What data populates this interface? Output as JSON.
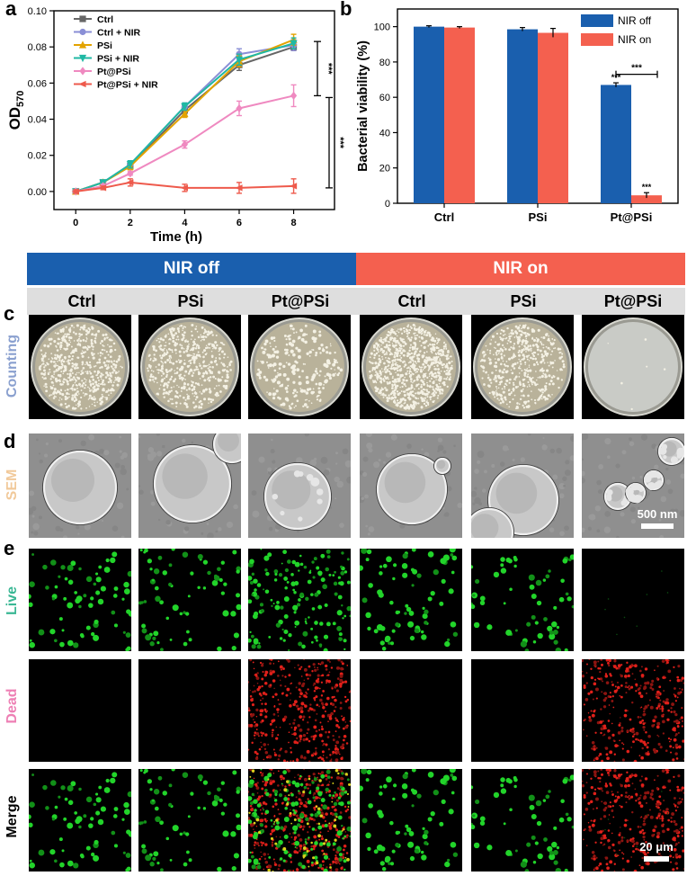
{
  "panel_labels": {
    "a": "a",
    "b": "b",
    "c": "c",
    "d": "d",
    "e": "e"
  },
  "colors": {
    "nir_off": "#1a5fae",
    "nir_on": "#f4604f",
    "counting_label": "#8aa0cf",
    "sem_label": "#f1c99a",
    "live_label": "#3ab794",
    "dead_label": "#ee7fb4"
  },
  "chart_data": [
    {
      "type": "line",
      "ylabel": "OD",
      "ylabel_sub": "570",
      "xlabel": "Time (h)",
      "x": [
        0,
        1,
        2,
        4,
        6,
        8
      ],
      "xticks": [
        "0",
        "2",
        "4",
        "6",
        "8"
      ],
      "yticks": [
        "0.00",
        "0.02",
        "0.04",
        "0.06",
        "0.08",
        "0.10"
      ],
      "xlim": [
        -0.8,
        9.5
      ],
      "ylim": [
        -0.01,
        0.1
      ],
      "series": [
        {
          "name": "Ctrl",
          "color": "#666666",
          "marker": "square",
          "values": [
            0.0,
            0.005,
            0.014,
            0.045,
            0.07,
            0.08
          ],
          "err": [
            0.001,
            0.001,
            0.002,
            0.002,
            0.003,
            0.002
          ]
        },
        {
          "name": "Ctrl + NIR",
          "color": "#8a8fd6",
          "marker": "circle",
          "values": [
            0.0,
            0.005,
            0.015,
            0.047,
            0.076,
            0.081
          ],
          "err": [
            0.001,
            0.001,
            0.002,
            0.002,
            0.003,
            0.003
          ]
        },
        {
          "name": "PSi",
          "color": "#e3a300",
          "marker": "triangle",
          "values": [
            0.0,
            0.005,
            0.014,
            0.043,
            0.072,
            0.084
          ],
          "err": [
            0.001,
            0.001,
            0.002,
            0.002,
            0.003,
            0.003
          ]
        },
        {
          "name": "PSi + NIR",
          "color": "#1fb8a4",
          "marker": "triangle-down",
          "values": [
            0.0,
            0.005,
            0.015,
            0.047,
            0.073,
            0.082
          ],
          "err": [
            0.001,
            0.001,
            0.002,
            0.002,
            0.003,
            0.003
          ]
        },
        {
          "name": "Pt@PSi",
          "color": "#ef89c0",
          "marker": "diamond",
          "values": [
            0.0,
            0.003,
            0.01,
            0.026,
            0.046,
            0.053
          ],
          "err": [
            0.001,
            0.001,
            0.001,
            0.002,
            0.004,
            0.006
          ]
        },
        {
          "name": "Pt@PSi + NIR",
          "color": "#ee5a4c",
          "marker": "triangle-left",
          "values": [
            0.0,
            0.002,
            0.005,
            0.002,
            0.002,
            0.003
          ],
          "err": [
            0.001,
            0.001,
            0.002,
            0.002,
            0.003,
            0.004
          ]
        }
      ],
      "significance": [
        {
          "label": "***",
          "from": 0.053,
          "to": 0.083
        },
        {
          "label": "***",
          "from": 0.002,
          "to": 0.052
        }
      ]
    },
    {
      "type": "bar",
      "ylabel": "Bacterial viability (%)",
      "categories": [
        "Ctrl",
        "PSi",
        "Pt@PSi"
      ],
      "ylim": [
        0,
        110
      ],
      "yticks": [
        "0",
        "20",
        "40",
        "60",
        "80",
        "100"
      ],
      "series": [
        {
          "name": "NIR off",
          "color": "#1a5fae",
          "values": [
            100,
            98.5,
            67
          ],
          "err": [
            0.5,
            1.0,
            1.2
          ]
        },
        {
          "name": "NIR on",
          "color": "#f4604f",
          "values": [
            99.5,
            96.5,
            4.5
          ],
          "err": [
            0.5,
            2.5,
            1.5
          ]
        }
      ],
      "bar_annotations": [
        "***",
        "***"
      ],
      "bracket_label": "***",
      "legend_position": "top-right"
    }
  ],
  "banners": {
    "nir_off": "NIR off",
    "nir_on": "NIR on"
  },
  "groups": [
    "Ctrl",
    "PSi",
    "Pt@PSi",
    "Ctrl",
    "PSi",
    "Pt@PSi"
  ],
  "row_labels": {
    "counting": "Counting",
    "sem": "SEM",
    "live": "Live",
    "dead": "Dead",
    "merge": "Merge"
  },
  "counting_colony_density": [
    620,
    520,
    240,
    900,
    520,
    6
  ],
  "scale_bars": {
    "sem": "500 nm",
    "fluorescence": "20 μm"
  }
}
